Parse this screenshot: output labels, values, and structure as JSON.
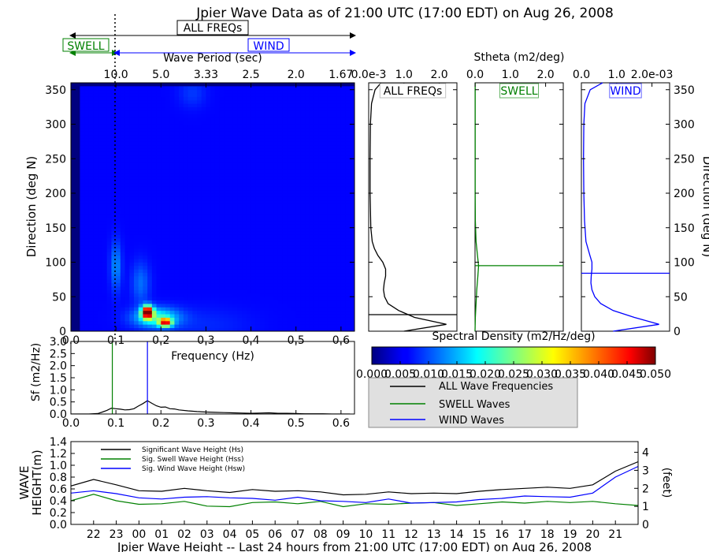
{
  "page": {
    "title": "Jpier Wave Data as of 21:00 UTC (17:00 EDT) on Aug 26, 2008"
  },
  "colors": {
    "all": "#000000",
    "swell": "#008000",
    "wind": "#0000ff",
    "cutoff_line": "#000000"
  },
  "band_labels": {
    "all": "ALL FREQs",
    "swell": "SWELL",
    "wind": "WIND"
  },
  "chart_data": [
    {
      "id": "spectrum",
      "type": "heatmap",
      "title": "",
      "xlabel": "Frequency (Hz)",
      "ylabel": "Direction (deg N)",
      "top_xlabel": "Wave Period (sec)",
      "xlim": [
        0.0,
        0.63
      ],
      "ylim": [
        0,
        360
      ],
      "x_ticks": [
        0.0,
        0.1,
        0.2,
        0.3,
        0.4,
        0.5,
        0.6
      ],
      "x_tick_labels": [
        "0.0",
        "0.1",
        "0.2",
        "0.3",
        "0.4",
        "0.5",
        "0.6"
      ],
      "top_ticks": [
        0.1,
        0.2,
        0.3,
        0.4,
        0.5,
        0.6
      ],
      "top_tick_labels": [
        "10.0",
        "5.0",
        "3.33",
        "2.5",
        "2.0",
        "1.67"
      ],
      "y_ticks": [
        0,
        50,
        100,
        150,
        200,
        250,
        300,
        350
      ],
      "y_tick_labels": [
        "0",
        "50",
        "100",
        "150",
        "200",
        "250",
        "300",
        "350"
      ],
      "swell_wind_cutoff_hz": 0.1,
      "colorbar": {
        "label": "Spectral Density (m2/Hz/deg)",
        "range": [
          0.0,
          0.05
        ],
        "ticks": [
          0.0,
          0.005,
          0.01,
          0.015,
          0.02,
          0.025,
          0.03,
          0.035,
          0.04,
          0.045,
          0.05
        ],
        "tick_labels": [
          "0.000",
          "0.005",
          "0.010",
          "0.015",
          "0.020",
          "0.025",
          "0.030",
          "0.035",
          "0.040",
          "0.045",
          "0.050"
        ]
      },
      "peaks": [
        {
          "freq": 0.17,
          "dir": 28,
          "value": 0.05
        },
        {
          "freq": 0.21,
          "dir": 14,
          "value": 0.038
        },
        {
          "freq": 0.1,
          "dir": 95,
          "value": 0.008
        }
      ]
    },
    {
      "id": "stheta",
      "type": "line",
      "title": "Stheta (m2/deg)",
      "ylim": [
        0,
        360
      ],
      "right_ylabel": "Direction (deg N)",
      "y_ticks": [
        0,
        50,
        100,
        150,
        200,
        250,
        300,
        350
      ],
      "y_tick_labels": [
        "0",
        "50",
        "100",
        "150",
        "200",
        "250",
        "300",
        "350"
      ],
      "panels": [
        {
          "name": "ALL FREQs",
          "tick_labels": [
            "0.0e-3",
            "1.0",
            "2.0"
          ],
          "xlim": [
            0,
            2.5
          ],
          "mean_dir": 24,
          "dir": [
            0,
            10,
            20,
            30,
            40,
            50,
            60,
            70,
            80,
            90,
            100,
            110,
            120,
            130,
            150,
            200,
            250,
            300,
            330,
            350,
            360
          ],
          "values": [
            1.0,
            2.2,
            1.3,
            0.85,
            0.55,
            0.45,
            0.42,
            0.44,
            0.48,
            0.48,
            0.4,
            0.26,
            0.16,
            0.1,
            0.06,
            0.04,
            0.04,
            0.05,
            0.08,
            0.18,
            0.35
          ]
        },
        {
          "name": "SWELL",
          "tick_labels": [
            "0.0",
            "1.0",
            "2.0"
          ],
          "xlim": [
            0,
            2.5
          ],
          "mean_dir": 95,
          "dir": [
            0,
            20,
            40,
            60,
            80,
            95,
            110,
            130,
            160,
            200,
            300,
            360
          ],
          "values": [
            0.0,
            0.01,
            0.03,
            0.05,
            0.08,
            0.1,
            0.07,
            0.03,
            0.01,
            0.005,
            0.005,
            0.005
          ]
        },
        {
          "name": "WIND",
          "tick_labels": [
            "0.0",
            "1.0",
            "2.0e-03"
          ],
          "xlim": [
            0,
            2.5
          ],
          "mean_dir": 84,
          "dir": [
            0,
            10,
            20,
            30,
            40,
            50,
            60,
            70,
            80,
            90,
            100,
            110,
            130,
            160,
            200,
            250,
            300,
            330,
            350,
            360
          ],
          "values": [
            0.9,
            2.2,
            1.5,
            0.9,
            0.55,
            0.38,
            0.3,
            0.27,
            0.28,
            0.3,
            0.3,
            0.24,
            0.13,
            0.09,
            0.07,
            0.06,
            0.07,
            0.1,
            0.25,
            0.6
          ]
        }
      ]
    },
    {
      "id": "sf",
      "type": "line",
      "xlabel": "Frequency (Hz)",
      "ylabel": "Sf (m2/Hz)",
      "xlim": [
        0.0,
        0.63
      ],
      "ylim": [
        0.0,
        3.0
      ],
      "x_ticks": [
        0.0,
        0.1,
        0.2,
        0.3,
        0.4,
        0.5,
        0.6
      ],
      "x_tick_labels": [
        "0.0",
        "0.1",
        "0.2",
        "0.3",
        "0.4",
        "0.5",
        "0.6"
      ],
      "y_ticks": [
        0.0,
        0.5,
        1.0,
        1.5,
        2.0,
        2.5,
        3.0
      ],
      "y_tick_labels": [
        "0.0",
        "0.5",
        "1.0",
        "1.5",
        "2.0",
        "2.5",
        "3.0"
      ],
      "swell_peak_hz": 0.092,
      "wind_peak_hz": 0.17,
      "x": [
        0.0,
        0.02,
        0.04,
        0.06,
        0.07,
        0.08,
        0.09,
        0.1,
        0.11,
        0.12,
        0.13,
        0.14,
        0.15,
        0.16,
        0.17,
        0.18,
        0.19,
        0.2,
        0.21,
        0.22,
        0.23,
        0.24,
        0.26,
        0.28,
        0.3,
        0.32,
        0.34,
        0.36,
        0.38,
        0.4,
        0.42,
        0.44,
        0.46,
        0.48,
        0.5,
        0.52,
        0.54,
        0.56,
        0.58,
        0.6,
        0.62
      ],
      "values": [
        0.0,
        0.0,
        0.0,
        0.02,
        0.08,
        0.15,
        0.24,
        0.22,
        0.2,
        0.17,
        0.18,
        0.22,
        0.33,
        0.43,
        0.55,
        0.44,
        0.34,
        0.28,
        0.29,
        0.22,
        0.21,
        0.17,
        0.13,
        0.1,
        0.08,
        0.07,
        0.06,
        0.05,
        0.04,
        0.03,
        0.04,
        0.05,
        0.03,
        0.03,
        0.02,
        0.01,
        0.01,
        0.01,
        0.0,
        0.0,
        0.0
      ]
    },
    {
      "id": "height",
      "type": "line",
      "title": "Jpier Wave Height -- Last 24 hours from 21:00 UTC (17:00 EDT) on Aug 26, 2008",
      "ylabel": "WAVE HEIGHT(m)",
      "ylabel_lines": [
        "WAVE",
        "HEIGHT(m)"
      ],
      "right_ylabel": "(feet)",
      "ylim": [
        0.0,
        1.4
      ],
      "y_ticks": [
        0.0,
        0.2,
        0.4,
        0.6,
        0.8,
        1.0,
        1.2,
        1.4
      ],
      "y_tick_labels": [
        "0.0",
        "0.2",
        "0.4",
        "0.6",
        "0.8",
        "1.0",
        "1.2",
        "1.4"
      ],
      "right_ticks_ft": [
        0,
        1,
        2,
        3,
        4
      ],
      "right_tick_labels": [
        "0",
        "1",
        "2",
        "3",
        "4"
      ],
      "xlim": [
        -1,
        24
      ],
      "categories": [
        "22",
        "23",
        "00",
        "01",
        "02",
        "03",
        "04",
        "05",
        "06",
        "07",
        "08",
        "09",
        "10",
        "11",
        "12",
        "13",
        "14",
        "15",
        "16",
        "17",
        "18",
        "19",
        "20",
        "21"
      ],
      "series": [
        {
          "name": "Significant Wave Height (Hs)",
          "x": [
            -1,
            0,
            1,
            2,
            3,
            4,
            5,
            6,
            7,
            8,
            9,
            10,
            11,
            12,
            13,
            14,
            15,
            16,
            17,
            18,
            19,
            20,
            21,
            22,
            23,
            24
          ],
          "values": [
            0.65,
            0.76,
            0.67,
            0.57,
            0.56,
            0.61,
            0.57,
            0.54,
            0.59,
            0.56,
            0.57,
            0.55,
            0.5,
            0.51,
            0.55,
            0.52,
            0.53,
            0.52,
            0.56,
            0.59,
            0.61,
            0.63,
            0.61,
            0.67,
            0.9,
            1.06
          ]
        },
        {
          "name": "Sig. Swell Wave Height (Hss)",
          "x": [
            -1,
            0,
            1,
            2,
            3,
            4,
            5,
            6,
            7,
            8,
            9,
            10,
            11,
            12,
            13,
            14,
            15,
            16,
            17,
            18,
            19,
            20,
            21,
            22,
            23,
            24
          ],
          "values": [
            0.4,
            0.51,
            0.4,
            0.34,
            0.35,
            0.39,
            0.31,
            0.3,
            0.37,
            0.38,
            0.35,
            0.39,
            0.3,
            0.35,
            0.34,
            0.36,
            0.37,
            0.32,
            0.35,
            0.38,
            0.36,
            0.39,
            0.37,
            0.39,
            0.35,
            0.32
          ]
        },
        {
          "name": "Sig. Wind Wave Height (Hsw)",
          "x": [
            -1,
            0,
            1,
            2,
            3,
            4,
            5,
            6,
            7,
            8,
            9,
            10,
            11,
            12,
            13,
            14,
            15,
            16,
            17,
            18,
            19,
            20,
            21,
            22,
            23,
            24
          ],
          "values": [
            0.53,
            0.57,
            0.52,
            0.45,
            0.43,
            0.46,
            0.47,
            0.45,
            0.44,
            0.41,
            0.46,
            0.4,
            0.39,
            0.37,
            0.43,
            0.36,
            0.37,
            0.38,
            0.42,
            0.44,
            0.48,
            0.47,
            0.46,
            0.53,
            0.8,
            0.98
          ]
        }
      ]
    }
  ],
  "legend": {
    "entries": [
      "ALL Wave Frequencies",
      "SWELL Waves",
      "WIND Waves"
    ]
  }
}
